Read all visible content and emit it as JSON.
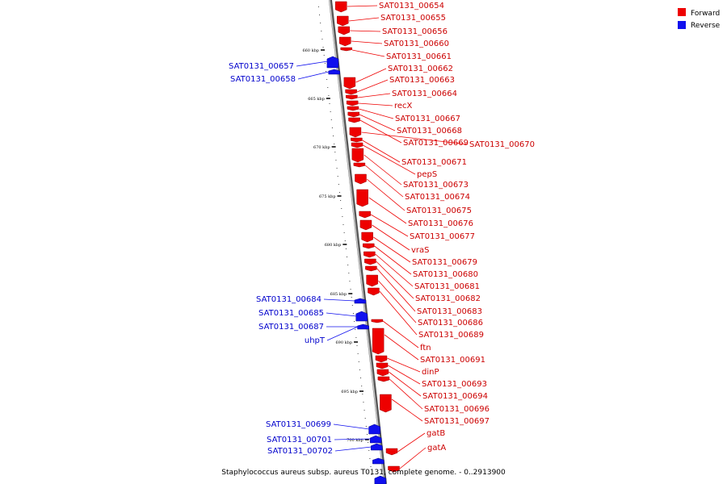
{
  "title": "Staphylococcus aureus subsp. aureus T0131, complete genome. - 0..2913900",
  "colors": {
    "forward": "#ee0000",
    "reverse": "#1010ee",
    "backbone": "#888888"
  },
  "legend": [
    {
      "label": "Forward",
      "color": "#ee0000"
    },
    {
      "label": "Reverse",
      "color": "#1010ee"
    }
  ],
  "ticks": [
    "660 kbp",
    "665 kbp",
    "670 kbp",
    "675 kbp",
    "680 kbp",
    "685 kbp",
    "690 kbp",
    "695 kbp",
    "700 kbp"
  ],
  "genes": {
    "forward": [
      "SAT0131_00654",
      "SAT0131_00655",
      "SAT0131_00656",
      "SAT0131_00660",
      "SAT0131_00661",
      "SAT0131_00662",
      "SAT0131_00663",
      "SAT0131_00664",
      "recX",
      "SAT0131_00667",
      "SAT0131_00668",
      "SAT0131_00669",
      "SAT0131_00670",
      "SAT0131_00671",
      "pepS",
      "SAT0131_00673",
      "SAT0131_00674",
      "SAT0131_00675",
      "SAT0131_00676",
      "SAT0131_00677",
      "vraS",
      "SAT0131_00679",
      "SAT0131_00680",
      "SAT0131_00681",
      "SAT0131_00682",
      "SAT0131_00683",
      "SAT0131_00686",
      "SAT0131_00689",
      "ftn",
      "SAT0131_00691",
      "dinP",
      "SAT0131_00693",
      "SAT0131_00694",
      "SAT0131_00696",
      "SAT0131_00697",
      "gatB",
      "gatA"
    ],
    "reverse": [
      "SAT0131_00657",
      "SAT0131_00658",
      "SAT0131_00684",
      "SAT0131_00685",
      "SAT0131_00687",
      "uhpT",
      "SAT0131_00699",
      "SAT0131_00701",
      "SAT0131_00702"
    ]
  }
}
